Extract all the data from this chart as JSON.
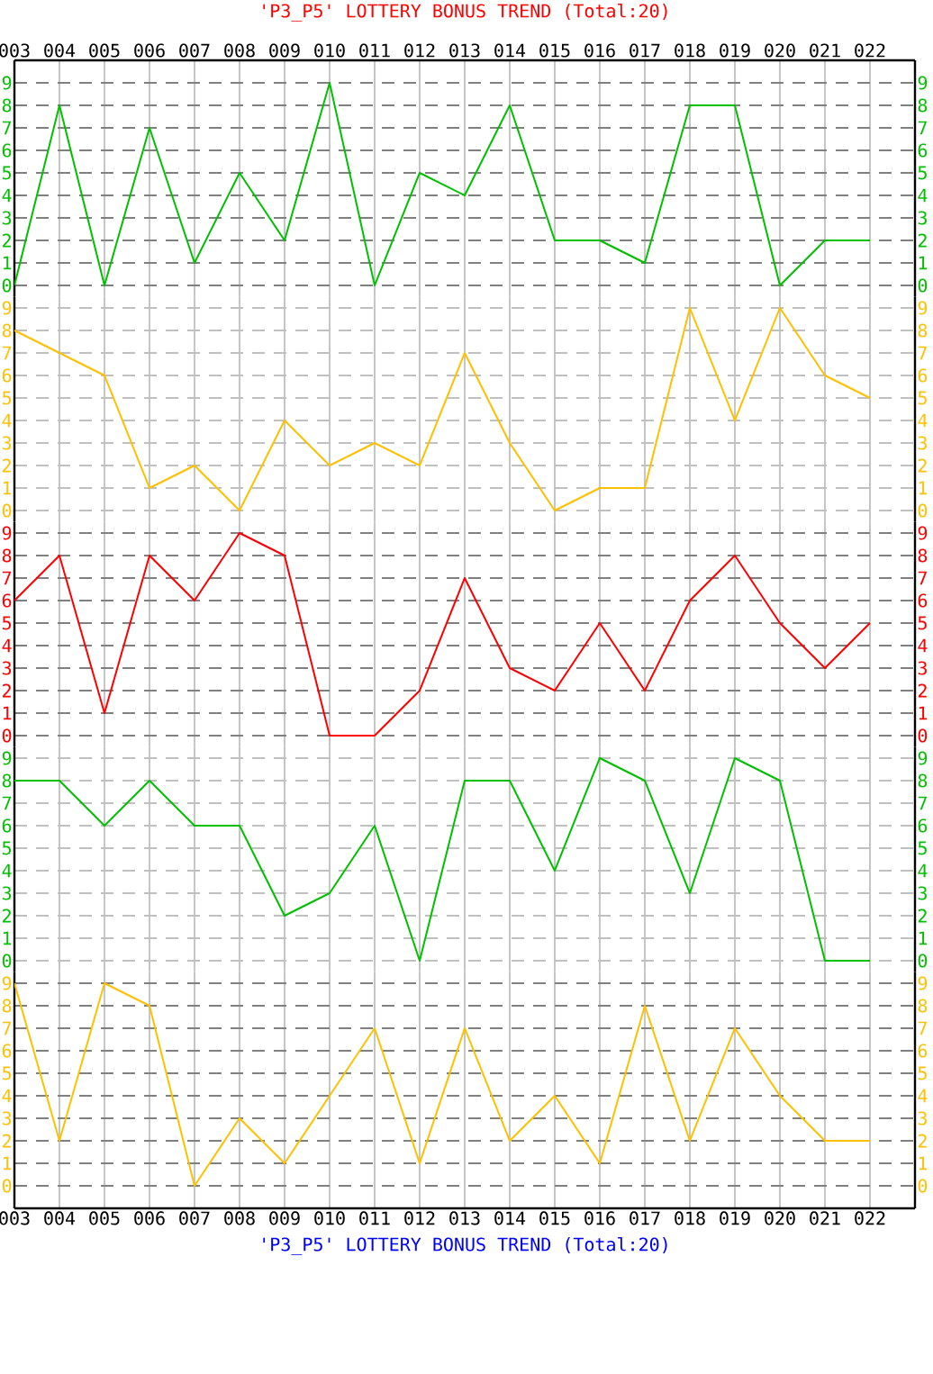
{
  "chart_data": [
    {
      "type": "line",
      "title": "'P3_P5' LOTTERY BONUS TREND (Total:20)",
      "categories": [
        "003",
        "004",
        "005",
        "006",
        "007",
        "008",
        "009",
        "010",
        "011",
        "012",
        "013",
        "014",
        "015",
        "016",
        "017",
        "018",
        "019",
        "020",
        "021",
        "022"
      ],
      "series": [
        {
          "color": "#00C000",
          "values": [
            0,
            8,
            0,
            7,
            1,
            5,
            2,
            9,
            0,
            5,
            4,
            8,
            2,
            2,
            1,
            8,
            8,
            0,
            2,
            2
          ]
        }
      ],
      "ylim": [
        -0.5,
        10
      ],
      "yticks": [
        0,
        1,
        2,
        3,
        4,
        5,
        6,
        7,
        8,
        9
      ],
      "y2lim": [
        -0.5,
        10
      ],
      "y2ticks": [
        0,
        1,
        2,
        3,
        4,
        5,
        6,
        7,
        8,
        9
      ],
      "grid": true
    },
    {
      "type": "line",
      "categories": [
        "003",
        "004",
        "005",
        "006",
        "007",
        "008",
        "009",
        "010",
        "011",
        "012",
        "013",
        "014",
        "015",
        "016",
        "017",
        "018",
        "019",
        "020",
        "021",
        "022"
      ],
      "series": [
        {
          "color": "#FFC000",
          "values": [
            8,
            7,
            6,
            1,
            2,
            0,
            4,
            2,
            3,
            2,
            7,
            3,
            0,
            1,
            1,
            9,
            4,
            9,
            6,
            5
          ]
        }
      ],
      "ylim": [
        -0.5,
        9.5
      ],
      "yticks": [
        0,
        1,
        2,
        3,
        4,
        5,
        6,
        7,
        8,
        9
      ],
      "y2lim": [
        -0.5,
        9.5
      ],
      "y2ticks": [
        0,
        1,
        2,
        3,
        4,
        5,
        6,
        7,
        8,
        9
      ],
      "grid": true,
      "tick_labels": "y"
    },
    {
      "type": "line",
      "categories": [
        "003",
        "004",
        "005",
        "006",
        "007",
        "008",
        "009",
        "010",
        "011",
        "012",
        "013",
        "014",
        "015",
        "016",
        "017",
        "018",
        "019",
        "020",
        "021",
        "022"
      ],
      "series": [
        {
          "color": "#FF0000",
          "values": [
            6,
            8,
            1,
            8,
            6,
            9,
            8,
            0,
            0,
            2,
            7,
            3,
            2,
            5,
            2,
            6,
            8,
            5,
            3,
            5
          ]
        }
      ],
      "ylim": [
        -0.5,
        9.5
      ],
      "yticks": [
        0,
        1,
        2,
        3,
        4,
        5,
        6,
        7,
        8,
        9
      ],
      "y2lim": [
        -0.5,
        9.5
      ],
      "y2ticks": [
        0,
        1,
        2,
        3,
        4,
        5,
        6,
        7,
        8,
        9
      ],
      "grid": true,
      "tick_labels": "y"
    },
    {
      "type": "line",
      "categories": [
        "003",
        "004",
        "005",
        "006",
        "007",
        "008",
        "009",
        "010",
        "011",
        "012",
        "013",
        "014",
        "015",
        "016",
        "017",
        "018",
        "019",
        "020",
        "021",
        "022"
      ],
      "series": [
        {
          "color": "#00C000",
          "values": [
            8,
            8,
            6,
            8,
            6,
            6,
            2,
            3,
            6,
            0,
            8,
            8,
            4,
            9,
            8,
            3,
            9,
            8,
            0,
            0
          ]
        }
      ],
      "ylim": [
        -0.5,
        9.5
      ],
      "yticks": [
        0,
        1,
        2,
        3,
        4,
        5,
        6,
        7,
        8,
        9
      ],
      "y2lim": [
        -0.5,
        9.5
      ],
      "y2ticks": [
        0,
        1,
        2,
        3,
        4,
        5,
        6,
        7,
        8,
        9
      ],
      "grid": true,
      "tick_labels": "y"
    },
    {
      "type": "line",
      "annotations": [
        "'P3_P5' LOTTERY BONUS TREND (Total:20)"
      ],
      "categories": [
        "003",
        "004",
        "005",
        "006",
        "007",
        "008",
        "009",
        "010",
        "011",
        "012",
        "013",
        "014",
        "015",
        "016",
        "017",
        "018",
        "019",
        "020",
        "021",
        "022"
      ],
      "series": [
        {
          "color": "#FFC000",
          "values": [
            9,
            2,
            9,
            8,
            0,
            3,
            1,
            4,
            7,
            1,
            7,
            2,
            4,
            1,
            8,
            2,
            7,
            4,
            2,
            2
          ]
        }
      ],
      "ylim": [
        -1,
        9.5
      ],
      "yticks": [
        0,
        1,
        2,
        3,
        4,
        5,
        6,
        7,
        8,
        9
      ],
      "y2lim": [
        -1,
        9.5
      ],
      "y2ticks": [
        0,
        1,
        2,
        3,
        4,
        5,
        6,
        7,
        8,
        9
      ],
      "grid": true
    }
  ]
}
